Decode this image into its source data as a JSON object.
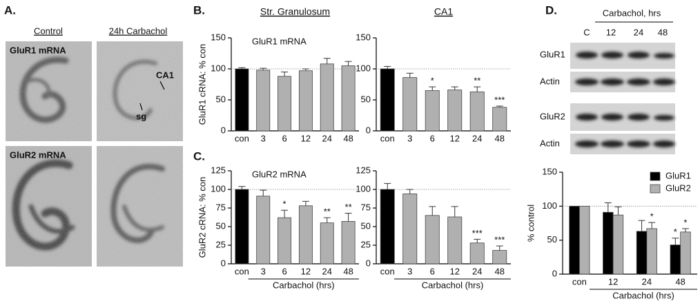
{
  "panel_labels": [
    "A.",
    "B.",
    "C.",
    "D."
  ],
  "panel_a": {
    "columns": [
      "Control",
      "24h Carbachol"
    ],
    "rows": [
      "GluR1 mRNA",
      "GluR2 mRNA"
    ],
    "regions": [
      "CA1",
      "sg"
    ]
  },
  "panel_d_blot": {
    "header": "Carbachol, hrs",
    "lanes": [
      "C",
      "12",
      "24",
      "48"
    ],
    "rows": [
      "GluR1",
      "Actin",
      "GluR2",
      "Actin"
    ]
  },
  "chart_data": [
    {
      "type": "bar",
      "title": "Str. Granulosum",
      "label": "GluR1 mRNA",
      "ylabel": "GluR1 cRNA: % con",
      "categories": [
        "con",
        "3",
        "6",
        "12",
        "24",
        "48"
      ],
      "values": [
        100,
        98,
        88,
        97,
        108,
        105
      ],
      "errors": [
        2,
        3,
        7,
        3,
        9,
        7
      ],
      "significance": [
        null,
        null,
        null,
        null,
        null,
        null
      ],
      "colors": [
        "#000000",
        "#b0b0b0",
        "#b0b0b0",
        "#b0b0b0",
        "#b0b0b0",
        "#b0b0b0"
      ],
      "ylim": [
        0,
        150
      ],
      "yticks": [
        0,
        50,
        100,
        150
      ],
      "reference_line": 100
    },
    {
      "type": "bar",
      "title": "CA1",
      "categories": [
        "con",
        "3",
        "6",
        "12",
        "24",
        "48"
      ],
      "values": [
        100,
        86,
        65,
        66,
        63,
        38
      ],
      "errors": [
        4,
        7,
        6,
        5,
        8,
        2
      ],
      "significance": [
        null,
        null,
        "*",
        null,
        "**",
        "***"
      ],
      "colors": [
        "#000000",
        "#b0b0b0",
        "#b0b0b0",
        "#b0b0b0",
        "#b0b0b0",
        "#b0b0b0"
      ],
      "ylim": [
        0,
        150
      ],
      "yticks": [
        0,
        50,
        100,
        150
      ],
      "reference_line": 100
    },
    {
      "type": "bar",
      "label": "GluR2 mRNA",
      "ylabel": "GluR2 cRNA: % con",
      "xlabel": "Carbachol (hrs)",
      "categories": [
        "con",
        "3",
        "6",
        "12",
        "24",
        "48"
      ],
      "values": [
        100,
        91,
        62,
        78,
        55,
        57
      ],
      "errors": [
        4,
        8,
        10,
        6,
        7,
        11
      ],
      "significance": [
        null,
        null,
        "*",
        null,
        "**",
        "**"
      ],
      "colors": [
        "#000000",
        "#b0b0b0",
        "#b0b0b0",
        "#b0b0b0",
        "#b0b0b0",
        "#b0b0b0"
      ],
      "ylim": [
        0,
        125
      ],
      "yticks": [
        0,
        25,
        50,
        75,
        100,
        125
      ],
      "reference_line": 100
    },
    {
      "type": "bar",
      "xlabel": "Carbachol (hrs)",
      "categories": [
        "con",
        "3",
        "6",
        "12",
        "24",
        "48"
      ],
      "values": [
        100,
        94,
        65,
        63,
        28,
        18
      ],
      "errors": [
        8,
        6,
        12,
        14,
        5,
        6
      ],
      "significance": [
        null,
        null,
        null,
        null,
        "***",
        "***"
      ],
      "colors": [
        "#000000",
        "#b0b0b0",
        "#b0b0b0",
        "#b0b0b0",
        "#b0b0b0",
        "#b0b0b0"
      ],
      "ylim": [
        0,
        125
      ],
      "yticks": [
        0,
        25,
        50,
        75,
        100,
        125
      ],
      "reference_line": 100
    },
    {
      "type": "grouped_bar",
      "ylabel": "% control",
      "xlabel": "Carbachol (hrs)",
      "legend": "upper right",
      "categories": [
        "con",
        "12",
        "24",
        "48"
      ],
      "series": [
        {
          "name": "GluR1",
          "color": "#000000",
          "values": [
            100,
            91,
            63,
            43
          ],
          "errors": [
            0,
            14,
            16,
            10
          ],
          "significance": [
            null,
            null,
            null,
            "*"
          ]
        },
        {
          "name": "GluR2",
          "color": "#b0b0b0",
          "values": [
            100,
            87,
            67,
            62
          ],
          "errors": [
            0,
            12,
            9,
            5
          ],
          "significance": [
            null,
            null,
            "*",
            "*"
          ]
        }
      ],
      "ylim": [
        0,
        150
      ],
      "yticks": [
        0,
        50,
        100,
        150
      ],
      "reference_line": 100
    }
  ]
}
